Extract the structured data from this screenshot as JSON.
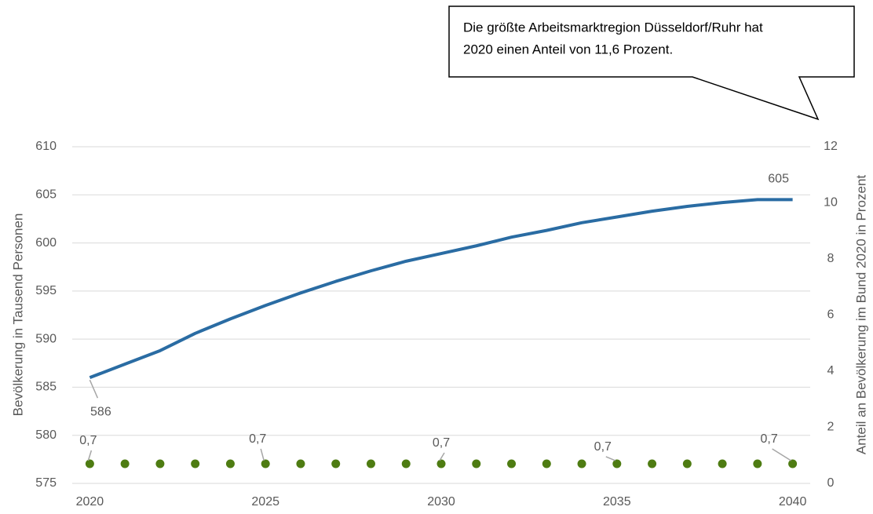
{
  "chart_data": {
    "type": "line",
    "annotation": [
      "Die größte Arbeitsmarktregion Düsseldorf/Ruhr hat",
      "2020 einen Anteil von 11,6 Prozent."
    ],
    "ylabel": "Bevölkerung in Tausend Personen",
    "y2label": "Anteil an Bevölkerung im Bund 2020 in Prozent",
    "x": [
      2020,
      2021,
      2022,
      2023,
      2024,
      2025,
      2026,
      2027,
      2028,
      2029,
      2030,
      2031,
      2032,
      2033,
      2034,
      2035,
      2036,
      2037,
      2038,
      2039,
      2040
    ],
    "xlim": [
      2019.5,
      2040.5
    ],
    "xticks": [
      2020,
      2025,
      2030,
      2035,
      2040
    ],
    "ylim": [
      575,
      610
    ],
    "yticks": [
      575,
      580,
      585,
      590,
      595,
      600,
      605,
      610
    ],
    "y2lim": [
      0,
      12
    ],
    "y2ticks": [
      0,
      2,
      4,
      6,
      8,
      10,
      12
    ],
    "grid": true,
    "series": [
      {
        "type": "line",
        "color": "#2a6ca3",
        "values": [
          586,
          587.4,
          588.8,
          590.6,
          592.1,
          593.5,
          594.8,
          596.0,
          597.1,
          598.1,
          598.9,
          599.7,
          600.6,
          601.3,
          602.1,
          602.7,
          603.3,
          603.8,
          604.2,
          604.5,
          604.5
        ],
        "value_labels": [
          "586",
          null,
          null,
          null,
          null,
          null,
          null,
          null,
          null,
          null,
          null,
          null,
          null,
          null,
          null,
          null,
          null,
          null,
          null,
          null,
          "605"
        ]
      },
      {
        "type": "scatter",
        "axis": "y2",
        "color": "#4e7c12",
        "values": [
          0.7,
          0.7,
          0.7,
          0.7,
          0.7,
          0.7,
          0.7,
          0.7,
          0.7,
          0.7,
          0.7,
          0.7,
          0.7,
          0.7,
          0.7,
          0.7,
          0.7,
          0.7,
          0.7,
          0.7,
          0.7
        ],
        "value_labels": [
          "0,7",
          null,
          null,
          null,
          null,
          "0,7",
          null,
          null,
          null,
          null,
          "0,7",
          null,
          null,
          null,
          null,
          "0,7",
          null,
          null,
          null,
          null,
          "0,7"
        ]
      }
    ]
  }
}
